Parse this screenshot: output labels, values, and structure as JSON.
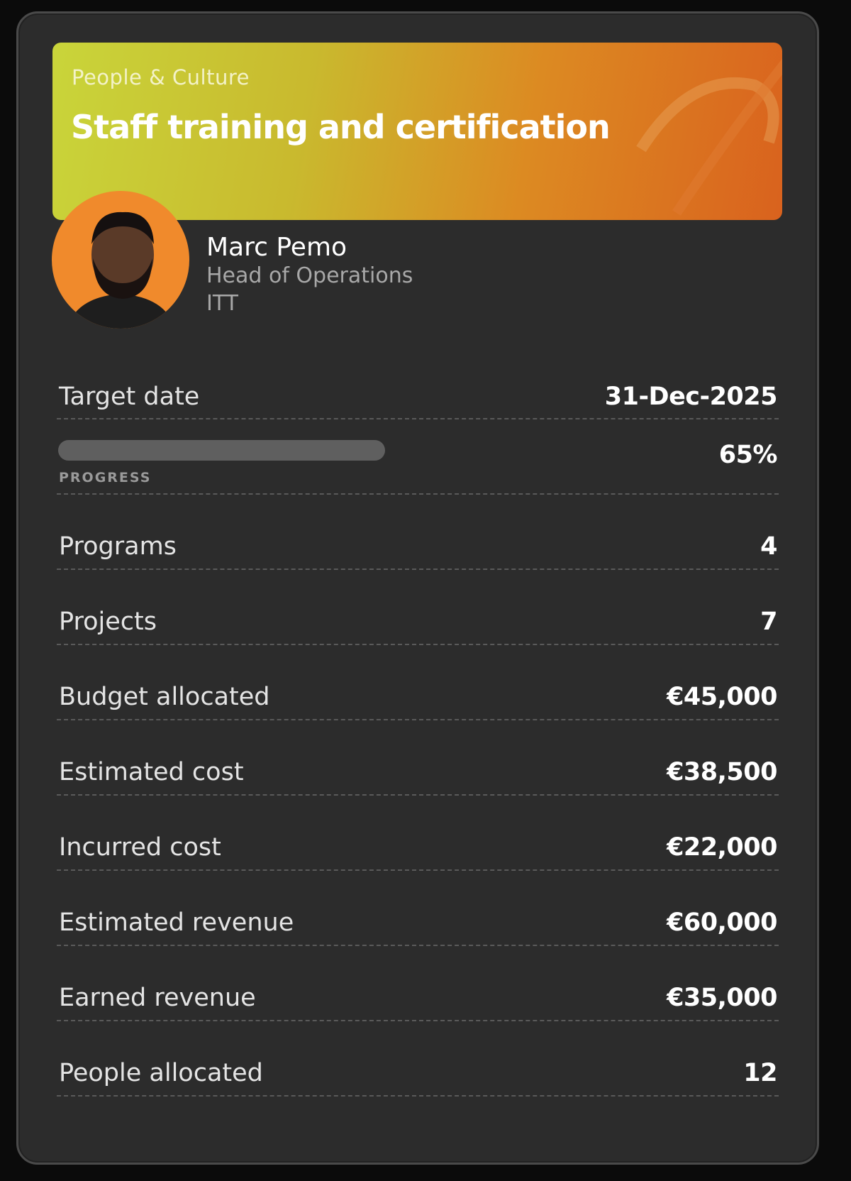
{
  "header": {
    "category": "People & Culture",
    "title": "Staff training and certification"
  },
  "profile": {
    "name": "Marc Pemo",
    "role": "Head of Operations",
    "org": "ITT"
  },
  "target": {
    "label": "Target date",
    "value": "31-Dec-2025"
  },
  "progress": {
    "label": "PROGRESS",
    "value": "65%"
  },
  "rows": [
    {
      "label": "Programs",
      "value": "4"
    },
    {
      "label": "Projects",
      "value": "7"
    },
    {
      "label": "Budget allocated",
      "value": "€45,000"
    },
    {
      "label": "Estimated cost",
      "value": "€38,500"
    },
    {
      "label": "Incurred cost",
      "value": "€22,000"
    },
    {
      "label": "Estimated revenue",
      "value": "€60,000"
    },
    {
      "label": "Earned revenue",
      "value": "€35,000"
    },
    {
      "label": "People allocated",
      "value": "12"
    }
  ]
}
